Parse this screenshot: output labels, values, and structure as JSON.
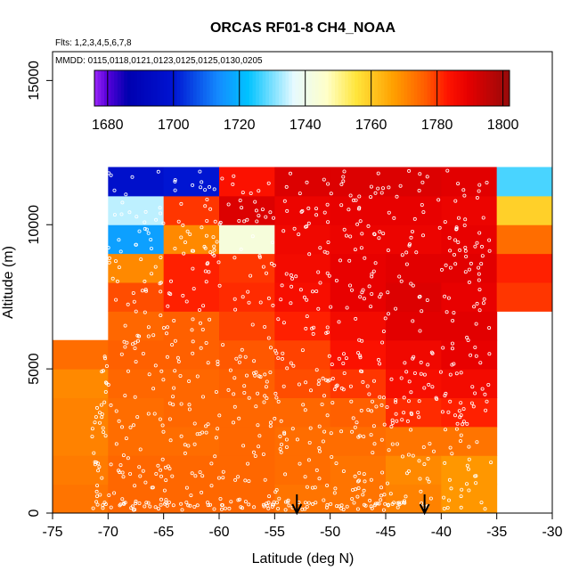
{
  "chart_data": {
    "type": "heatmap",
    "title": "ORCAS RF01-8 CH4_NOAA",
    "subtitle_flights": "Flts: 1,2,3,4,5,6,7,8",
    "subtitle_dates": "MMDD: 0115,0118,0121,0123,0125,0125,0130,0205",
    "xlabel": "Latitude (deg N)",
    "ylabel": "Altitude (m)",
    "xlim": [
      -75,
      -30
    ],
    "ylim": [
      0,
      16000
    ],
    "x_ticks": [
      -75,
      -70,
      -65,
      -60,
      -55,
      -50,
      -45,
      -40,
      -35,
      -30
    ],
    "x_tick_labels": [
      "-75",
      "-70",
      "-65",
      "-60",
      "-55",
      "-50",
      "-45",
      "-40",
      "-35",
      "-30"
    ],
    "y_ticks": [
      0,
      5000,
      10000,
      15000
    ],
    "y_tick_labels": [
      "0",
      "5000",
      "10000",
      "15000"
    ],
    "colorbar": {
      "min": 1676,
      "max": 1802,
      "ticks": [
        1680,
        1700,
        1720,
        1740,
        1760,
        1780,
        1800
      ],
      "tick_labels": [
        "1680",
        "1700",
        "1720",
        "1740",
        "1760",
        "1780",
        "1800"
      ]
    },
    "markers_lat": [
      -53,
      -41.5
    ],
    "cell_height_m": 1000,
    "lat_bands": [
      {
        "lat0": -75,
        "lat1": -70,
        "values": [
          1773,
          1772,
          1771,
          1771,
          1770,
          1774
        ]
      },
      {
        "lat0": -70,
        "lat1": -65,
        "values": [
          1775,
          1775,
          1774,
          1774,
          1775,
          1776,
          1775,
          1778,
          1770,
          1717,
          1734,
          1697
        ]
      },
      {
        "lat0": -65,
        "lat1": -60,
        "values": [
          1775,
          1775,
          1774,
          1775,
          1775,
          1776,
          1776,
          1782,
          1782,
          1770,
          1780,
          1700
        ]
      },
      {
        "lat0": -60,
        "lat1": -55,
        "values": [
          1775,
          1775,
          1775,
          1775,
          1776,
          1777,
          1779,
          1781,
          1780,
          1743,
          1791,
          1784
        ]
      },
      {
        "lat0": -55,
        "lat1": -50,
        "values": [
          1773,
          1774,
          1774,
          1775,
          1778,
          1779,
          1782,
          1785,
          1786,
          1787,
          1788,
          1791
        ]
      },
      {
        "lat0": -50,
        "lat1": -45,
        "values": [
          1773,
          1773,
          1774,
          1776,
          1780,
          1784,
          1786,
          1789,
          1789,
          1788,
          1789,
          1791
        ]
      },
      {
        "lat0": -45,
        "lat1": -40,
        "values": [
          1771,
          1770,
          1773,
          1781,
          1785,
          1787,
          1790,
          1791,
          1790,
          1788,
          1789,
          1791
        ]
      },
      {
        "lat0": -40,
        "lat1": -35,
        "values": [
          1768,
          1768,
          1773,
          1782,
          1786,
          1789,
          1790,
          1789,
          1790,
          1789,
          1788,
          1790
        ]
      },
      {
        "lat0": -35,
        "lat1": -30,
        "start_m": 7000,
        "values": [
          1780,
          1782,
          1774,
          1759,
          1727
        ]
      }
    ]
  }
}
